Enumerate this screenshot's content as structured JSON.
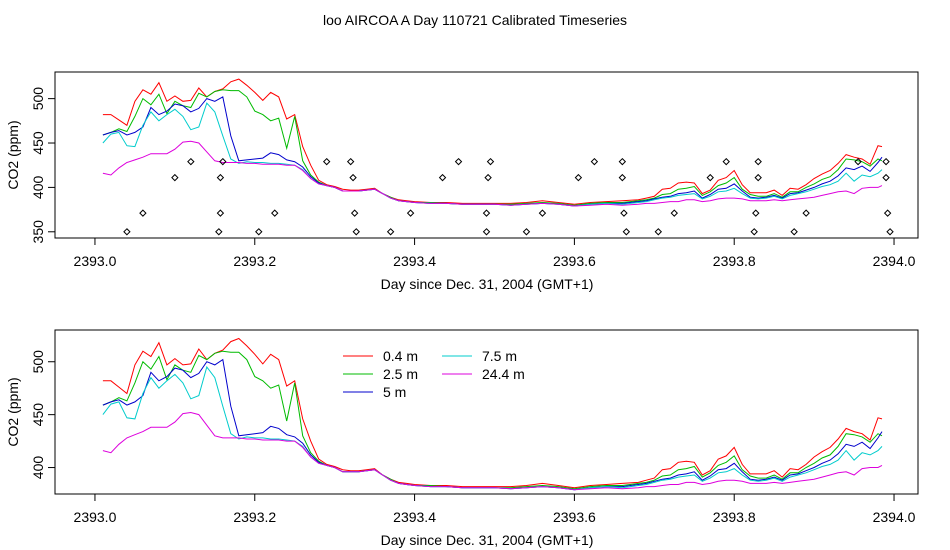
{
  "title": "loo AIRCOA A  Day 110721  Calibrated Timeseries",
  "chart_data": [
    {
      "type": "line",
      "panel": "top",
      "xlabel": "Day since Dec. 31, 2004 (GMT+1)",
      "ylabel": "CO2 (ppm)",
      "xlim": [
        2392.95,
        2394.03
      ],
      "ylim": [
        343,
        530
      ],
      "xticks": [
        2393.0,
        2393.2,
        2393.4,
        2393.6,
        2393.8,
        2394.0
      ],
      "xtick_labels": [
        "2393.0",
        "2393.2",
        "2393.4",
        "2393.6",
        "2393.8",
        "2394.0"
      ],
      "yticks": [
        350,
        400,
        450,
        500
      ],
      "ytick_labels": [
        "350",
        "400",
        "450",
        "500"
      ],
      "grid": false,
      "legend": "none",
      "points_series": {
        "x": [
          2393.04,
          2393.06,
          2393.1,
          2393.12,
          2393.155,
          2393.157,
          2393.157,
          2393.16,
          2393.205,
          2393.225,
          2393.29,
          2393.32,
          2393.323,
          2393.325,
          2393.327,
          2393.37,
          2393.395,
          2393.435,
          2393.455,
          2393.49,
          2393.49,
          2393.492,
          2393.495,
          2393.54,
          2393.56,
          2393.605,
          2393.625,
          2393.66,
          2393.66,
          2393.662,
          2393.665,
          2393.705,
          2393.725,
          2393.77,
          2393.79,
          2393.825,
          2393.827,
          2393.83,
          2393.83,
          2393.875,
          2393.89,
          2393.955,
          2393.99,
          2393.99,
          2393.992,
          2393.995
        ],
        "y": [
          350,
          371,
          411,
          429,
          350,
          371,
          411,
          429,
          350,
          371,
          429,
          429,
          411,
          371,
          350,
          350,
          371,
          411,
          429,
          350,
          371,
          411,
          429,
          350,
          371,
          411,
          429,
          429,
          411,
          371,
          350,
          350,
          371,
          411,
          429,
          350,
          371,
          411,
          429,
          350,
          371,
          429,
          429,
          411,
          371,
          350
        ]
      }
    },
    {
      "type": "line",
      "panel": "bottom",
      "xlabel": "Day since Dec. 31, 2004 (GMT+1)",
      "ylabel": "CO2 (ppm)",
      "xlim": [
        2392.95,
        2394.03
      ],
      "ylim": [
        375,
        530
      ],
      "xticks": [
        2393.0,
        2393.2,
        2393.4,
        2393.6,
        2393.8,
        2394.0
      ],
      "xtick_labels": [
        "2393.0",
        "2393.2",
        "2393.4",
        "2393.6",
        "2393.8",
        "2394.0"
      ],
      "yticks": [
        400,
        450,
        500
      ],
      "ytick_labels": [
        "400",
        "450",
        "500"
      ],
      "grid": false,
      "legend": "top-left"
    }
  ],
  "series": {
    "x": [
      2393.01,
      2393.02,
      2393.03,
      2393.04,
      2393.05,
      2393.06,
      2393.07,
      2393.08,
      2393.09,
      2393.1,
      2393.11,
      2393.12,
      2393.13,
      2393.14,
      2393.15,
      2393.16,
      2393.17,
      2393.18,
      2393.19,
      2393.2,
      2393.21,
      2393.22,
      2393.23,
      2393.24,
      2393.25,
      2393.26,
      2393.27,
      2393.28,
      2393.29,
      2393.3,
      2393.31,
      2393.32,
      2393.33,
      2393.34,
      2393.35,
      2393.36,
      2393.37,
      2393.38,
      2393.39,
      2393.4,
      2393.42,
      2393.44,
      2393.46,
      2393.48,
      2393.5,
      2393.52,
      2393.54,
      2393.56,
      2393.58,
      2393.6,
      2393.62,
      2393.64,
      2393.66,
      2393.68,
      2393.69,
      2393.7,
      2393.71,
      2393.72,
      2393.73,
      2393.74,
      2393.75,
      2393.76,
      2393.77,
      2393.78,
      2393.79,
      2393.8,
      2393.81,
      2393.82,
      2393.83,
      2393.84,
      2393.85,
      2393.86,
      2393.87,
      2393.88,
      2393.89,
      2393.9,
      2393.91,
      2393.92,
      2393.93,
      2393.94,
      2393.95,
      2393.96,
      2393.97,
      2393.98,
      2393.985
    ],
    "items": [
      {
        "name": "0.4 m",
        "color": "#ff0000",
        "values": [
          482,
          482,
          476,
          470,
          497,
          510,
          505,
          518,
          497,
          503,
          497,
          498,
          512,
          502,
          508,
          511,
          519,
          522,
          515,
          507,
          498,
          507,
          502,
          477,
          482,
          446,
          425,
          408,
          403,
          401,
          398,
          397,
          397,
          398,
          399,
          393,
          389,
          386,
          385,
          384,
          383,
          383,
          382,
          382,
          382,
          382,
          383,
          385,
          383,
          381,
          383,
          384,
          385,
          386,
          388,
          390,
          398,
          399,
          405,
          406,
          405,
          393,
          397,
          408,
          411,
          419,
          403,
          394,
          394,
          394,
          397,
          391,
          399,
          398,
          403,
          410,
          415,
          419,
          427,
          437,
          434,
          432,
          426,
          447,
          446
        ]
      },
      {
        "name": "2.5 m",
        "color": "#00bb00",
        "values": [
          459,
          462,
          466,
          463,
          480,
          500,
          493,
          505,
          483,
          497,
          492,
          490,
          506,
          502,
          508,
          510,
          509,
          509,
          502,
          486,
          482,
          475,
          478,
          444,
          480,
          430,
          414,
          406,
          402,
          400,
          396,
          396,
          396,
          397,
          398,
          393,
          389,
          385,
          384,
          383,
          383,
          382,
          381,
          381,
          381,
          381,
          382,
          383,
          382,
          380,
          382,
          383,
          383,
          385,
          386,
          388,
          392,
          393,
          398,
          399,
          401,
          391,
          395,
          402,
          405,
          411,
          398,
          392,
          390,
          390,
          393,
          389,
          395,
          395,
          400,
          404,
          409,
          412,
          420,
          432,
          431,
          429,
          424,
          432,
          430
        ]
      },
      {
        "name": "5 m",
        "color": "#0000cc",
        "values": [
          459,
          462,
          464,
          459,
          462,
          468,
          490,
          482,
          486,
          494,
          492,
          485,
          489,
          500,
          497,
          502,
          458,
          430,
          431,
          432,
          433,
          439,
          437,
          431,
          429,
          423,
          412,
          405,
          402,
          400,
          396,
          396,
          396,
          397,
          398,
          393,
          388,
          385,
          384,
          383,
          382,
          382,
          381,
          381,
          381,
          380,
          381,
          382,
          381,
          379,
          381,
          382,
          382,
          384,
          385,
          387,
          389,
          390,
          393,
          394,
          396,
          388,
          392,
          398,
          399,
          404,
          396,
          389,
          388,
          389,
          391,
          388,
          393,
          394,
          397,
          400,
          404,
          407,
          413,
          422,
          420,
          424,
          418,
          428,
          434
        ]
      },
      {
        "name": "7.5 m",
        "color": "#00cccc",
        "values": [
          450,
          460,
          462,
          447,
          446,
          470,
          485,
          475,
          482,
          488,
          480,
          465,
          468,
          495,
          485,
          458,
          432,
          427,
          429,
          428,
          428,
          427,
          427,
          426,
          425,
          420,
          410,
          404,
          402,
          400,
          396,
          396,
          396,
          397,
          398,
          393,
          388,
          385,
          384,
          383,
          382,
          382,
          381,
          381,
          381,
          380,
          381,
          382,
          381,
          379,
          381,
          382,
          381,
          383,
          384,
          386,
          388,
          389,
          391,
          392,
          393,
          387,
          390,
          395,
          396,
          399,
          393,
          388,
          387,
          388,
          390,
          387,
          391,
          393,
          395,
          398,
          401,
          403,
          407,
          416,
          407,
          414,
          412,
          416,
          420
        ]
      },
      {
        "name": "24.4 m",
        "color": "#dd00dd",
        "values": [
          416,
          414,
          422,
          428,
          431,
          434,
          438,
          438,
          438,
          443,
          451,
          452,
          450,
          440,
          430,
          428,
          428,
          428,
          427,
          427,
          426,
          426,
          426,
          425,
          425,
          419,
          410,
          404,
          402,
          400,
          396,
          396,
          396,
          397,
          398,
          393,
          388,
          385,
          384,
          383,
          382,
          382,
          381,
          381,
          381,
          380,
          381,
          382,
          381,
          379,
          380,
          381,
          380,
          381,
          382,
          382,
          383,
          384,
          384,
          386,
          386,
          384,
          385,
          387,
          388,
          388,
          387,
          385,
          385,
          385,
          386,
          385,
          386,
          387,
          388,
          389,
          391,
          393,
          395,
          396,
          393,
          399,
          400,
          400,
          402
        ]
      }
    ]
  }
}
